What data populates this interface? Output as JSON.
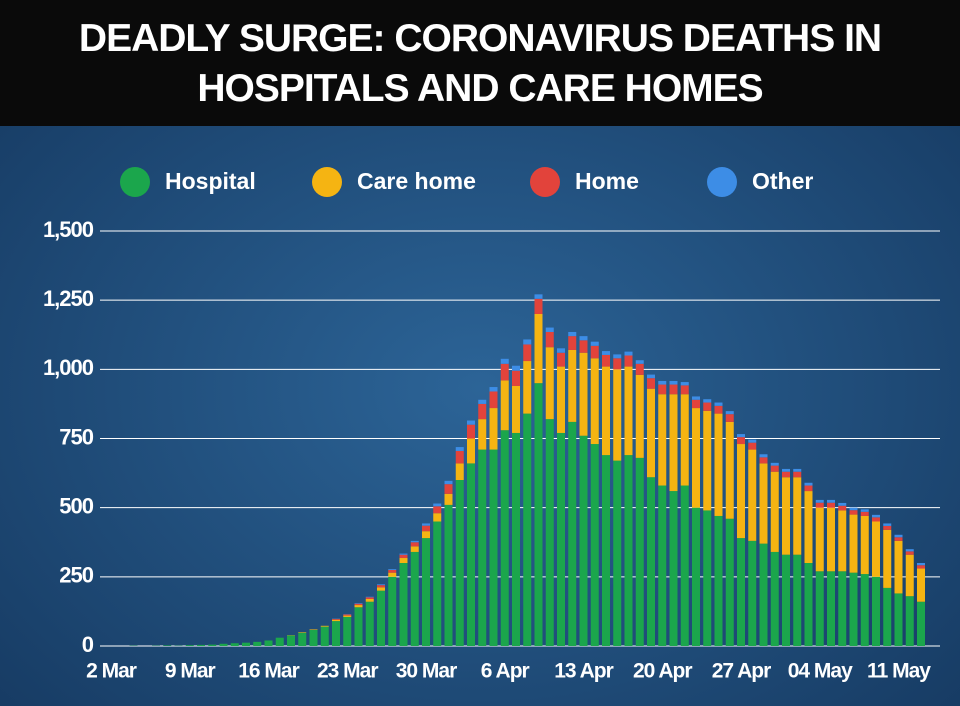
{
  "chart_data": {
    "type": "stacked_bar",
    "title": "DEADLY SURGE: CORONAVIRUS DEATHS IN HOSPITALS AND CARE HOMES",
    "categories": [
      "2 Mar",
      null,
      null,
      null,
      null,
      null,
      null,
      "9 Mar",
      null,
      null,
      null,
      null,
      null,
      null,
      "16 Mar",
      null,
      null,
      null,
      null,
      null,
      null,
      "23 Mar",
      null,
      null,
      null,
      null,
      null,
      null,
      "30 Mar",
      null,
      null,
      null,
      null,
      null,
      null,
      "6 Apr",
      null,
      null,
      null,
      null,
      null,
      null,
      "13 Apr",
      null,
      null,
      null,
      null,
      null,
      null,
      "20 Apr",
      null,
      null,
      null,
      null,
      null,
      null,
      "27 Apr",
      null,
      null,
      null,
      null,
      null,
      null,
      "04 May",
      null,
      null,
      null,
      null,
      null,
      null,
      "11 May",
      null,
      null
    ],
    "series": [
      {
        "name": "Hospital",
        "color": "#1ba64c",
        "values": [
          0,
          0,
          1,
          0,
          1,
          2,
          1,
          3,
          4,
          5,
          8,
          10,
          12,
          15,
          20,
          30,
          38,
          48,
          58,
          70,
          90,
          105,
          140,
          160,
          200,
          250,
          300,
          340,
          390,
          450,
          510,
          600,
          660,
          710,
          710,
          780,
          770,
          840,
          950,
          820,
          770,
          810,
          760,
          730,
          690,
          670,
          690,
          680,
          610,
          580,
          560,
          580,
          500,
          490,
          470,
          460,
          390,
          380,
          370,
          340,
          330,
          330,
          300,
          270,
          270,
          270,
          265,
          260,
          250,
          210,
          190,
          180,
          160
        ]
      },
      {
        "name": "Care home",
        "color": "#f5b412",
        "values": [
          0,
          0,
          0,
          0,
          0,
          0,
          0,
          0,
          0,
          0,
          0,
          0,
          0,
          0,
          0,
          0,
          1,
          2,
          2,
          3,
          5,
          5,
          8,
          10,
          12,
          15,
          18,
          20,
          25,
          30,
          40,
          60,
          90,
          110,
          150,
          180,
          170,
          190,
          250,
          260,
          240,
          260,
          300,
          310,
          320,
          330,
          320,
          300,
          320,
          330,
          350,
          330,
          360,
          360,
          370,
          350,
          340,
          330,
          290,
          290,
          280,
          280,
          260,
          230,
          230,
          220,
          210,
          210,
          200,
          210,
          190,
          150,
          120
        ]
      },
      {
        "name": "Home",
        "color": "#e2433b",
        "values": [
          0,
          0,
          0,
          0,
          0,
          0,
          0,
          0,
          0,
          0,
          0,
          0,
          0,
          0,
          0,
          0,
          0,
          0,
          0,
          0,
          3,
          4,
          5,
          6,
          8,
          10,
          12,
          15,
          20,
          25,
          35,
          45,
          50,
          55,
          60,
          60,
          55,
          60,
          55,
          55,
          50,
          50,
          45,
          45,
          42,
          40,
          40,
          40,
          38,
          35,
          35,
          32,
          30,
          30,
          28,
          28,
          25,
          25,
          22,
          22,
          20,
          20,
          20,
          18,
          18,
          17,
          16,
          15,
          15,
          14,
          13,
          12,
          12
        ]
      },
      {
        "name": "Other",
        "color": "#3d8de6",
        "values": [
          0,
          0,
          0,
          0,
          0,
          0,
          0,
          0,
          0,
          0,
          0,
          0,
          0,
          0,
          0,
          0,
          0,
          0,
          0,
          0,
          1,
          1,
          2,
          2,
          3,
          3,
          4,
          5,
          8,
          10,
          12,
          14,
          15,
          15,
          16,
          18,
          18,
          18,
          16,
          16,
          16,
          15,
          15,
          15,
          14,
          14,
          14,
          13,
          13,
          13,
          13,
          12,
          12,
          12,
          12,
          11,
          11,
          11,
          11,
          10,
          10,
          10,
          10,
          10,
          10,
          10,
          9,
          9,
          9,
          9,
          9,
          8,
          8
        ]
      }
    ],
    "ylim": [
      0,
      1500
    ],
    "yticks": [
      0,
      250,
      500,
      750,
      {
        "value": 1000,
        "label": "1,000"
      },
      {
        "value": 1250,
        "label": "1,250"
      },
      {
        "value": 1500,
        "label": "1,500"
      }
    ],
    "grid": true,
    "legend": "top"
  }
}
